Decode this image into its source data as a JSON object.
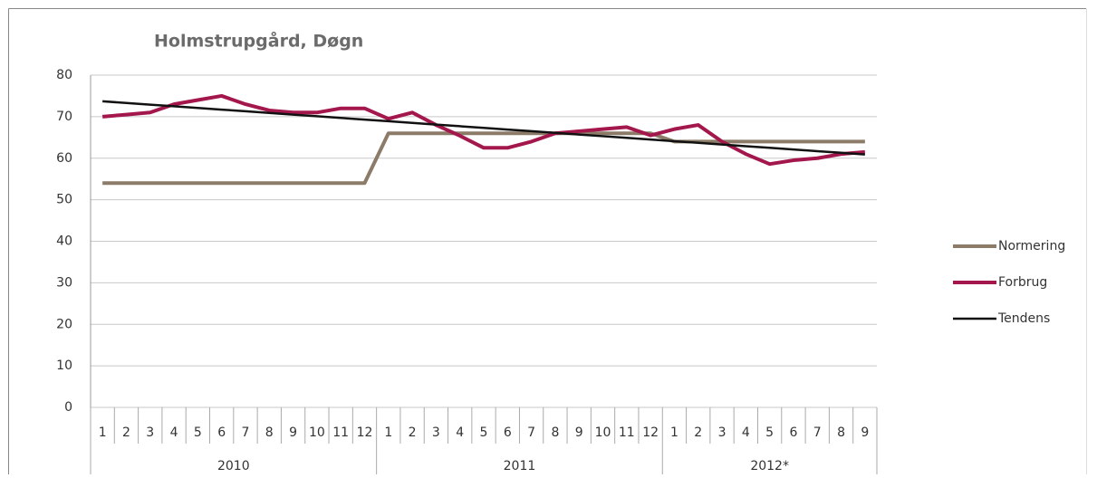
{
  "chart_data": {
    "type": "line",
    "title": "Holmstrupgård, Døgn",
    "categories": [
      "1",
      "2",
      "3",
      "4",
      "5",
      "6",
      "7",
      "8",
      "9",
      "10",
      "11",
      "12",
      "1",
      "2",
      "3",
      "4",
      "5",
      "6",
      "7",
      "8",
      "9",
      "10",
      "11",
      "12",
      "1",
      "2",
      "3",
      "4",
      "5",
      "6",
      "7",
      "8",
      "9"
    ],
    "category_groups": [
      "2010",
      "2011",
      "2012*"
    ],
    "series": [
      {
        "name": "Normering",
        "color": "#8c7b68",
        "width": 4,
        "values": [
          54,
          54,
          54,
          54,
          54,
          54,
          54,
          54,
          54,
          54,
          54,
          54,
          66,
          66,
          66,
          66,
          66,
          66,
          66,
          66,
          66,
          66,
          66,
          66,
          64,
          64,
          64,
          64,
          64,
          64,
          64,
          64,
          64
        ]
      },
      {
        "name": "Forbrug",
        "color": "#a3174c",
        "width": 4,
        "values": [
          70,
          70.5,
          71,
          73,
          74,
          75,
          73,
          71.5,
          71,
          71,
          72,
          72,
          69.5,
          71,
          68,
          65.4,
          62.5,
          62.5,
          64,
          66,
          66.5,
          67,
          67.5,
          65.5,
          67,
          68,
          64,
          61,
          58.6,
          59.5,
          60,
          61,
          61.5
        ]
      },
      {
        "name": "Tendens",
        "color": "#111111",
        "width": 2.5,
        "values": [
          73.7,
          73.3,
          72.9,
          72.5,
          72.1,
          71.7,
          71.3,
          70.9,
          70.5,
          70.1,
          69.7,
          69.3,
          68.9,
          68.5,
          68.1,
          67.7,
          67.3,
          66.9,
          66.5,
          66.1,
          65.7,
          65.3,
          64.9,
          64.5,
          64.1,
          63.7,
          63.3,
          62.9,
          62.5,
          62.1,
          61.7,
          61.3,
          60.9
        ]
      }
    ],
    "ylim": [
      0,
      80
    ],
    "yticks": [
      0,
      10,
      20,
      30,
      40,
      50,
      60,
      70,
      80
    ],
    "grid": true,
    "legend": "right"
  }
}
